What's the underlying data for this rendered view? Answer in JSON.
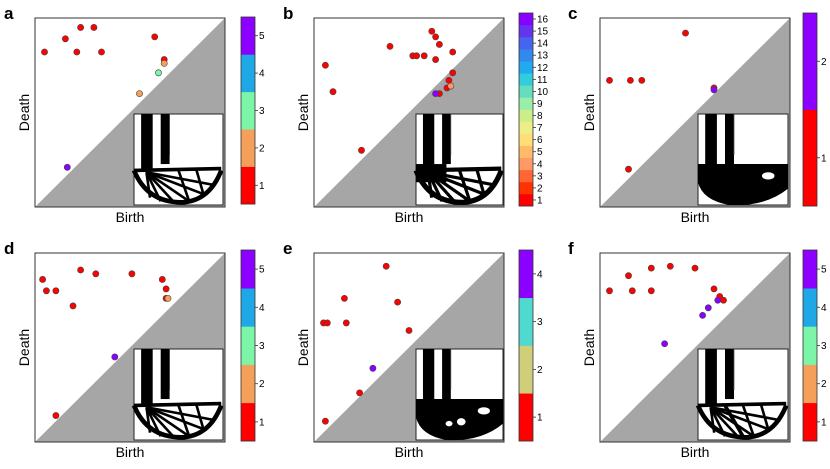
{
  "colors": {
    "triangle": "#a6a6a6",
    "frame": "#333333",
    "point_edge": "#444444"
  },
  "chart_data": [
    {
      "type": "scatter",
      "letter": "a",
      "xlabel": "Birth",
      "ylabel": "Death",
      "xlim": [
        0,
        1
      ],
      "ylim": [
        0,
        1
      ],
      "diagonal_shaded": true,
      "colorbar": {
        "max": 5.5,
        "ticks": [
          1,
          2,
          3,
          4,
          5
        ],
        "colors": [
          "#ff0000",
          "#f5a05a",
          "#7cf5a8",
          "#1ea9e6",
          "#8c00ff"
        ]
      },
      "points": [
        {
          "x": 0.05,
          "y": 0.82,
          "c": 1
        },
        {
          "x": 0.16,
          "y": 0.89,
          "c": 1
        },
        {
          "x": 0.24,
          "y": 0.95,
          "c": 1
        },
        {
          "x": 0.31,
          "y": 0.95,
          "c": 1
        },
        {
          "x": 0.22,
          "y": 0.82,
          "c": 1
        },
        {
          "x": 0.35,
          "y": 0.82,
          "c": 1
        },
        {
          "x": 0.63,
          "y": 0.9,
          "c": 1
        },
        {
          "x": 0.68,
          "y": 0.78,
          "c": 1
        },
        {
          "x": 0.68,
          "y": 0.76,
          "c": 2
        },
        {
          "x": 0.65,
          "y": 0.71,
          "c": 3
        },
        {
          "x": 0.55,
          "y": 0.6,
          "c": 2
        },
        {
          "x": 0.17,
          "y": 0.21,
          "c": 5
        }
      ]
    },
    {
      "type": "scatter",
      "letter": "b",
      "xlabel": "Birth",
      "ylabel": "Death",
      "xlim": [
        0,
        1
      ],
      "ylim": [
        0,
        1
      ],
      "diagonal_shaded": true,
      "colorbar": {
        "max": 16.5,
        "ticks": [
          1,
          2,
          3,
          4,
          5,
          6,
          7,
          8,
          9,
          10,
          11,
          12,
          13,
          14,
          15,
          16
        ],
        "colors": [
          "#ff0000",
          "#ff3300",
          "#ff6633",
          "#ff9966",
          "#ffbb66",
          "#ffdd77",
          "#eeee88",
          "#ccee88",
          "#99eeaa",
          "#66ddbb",
          "#33ccdd",
          "#22aaee",
          "#3388ee",
          "#4466ee",
          "#6633ee",
          "#8800ff"
        ]
      },
      "points": [
        {
          "x": 0.06,
          "y": 0.75,
          "c": 1
        },
        {
          "x": 0.1,
          "y": 0.61,
          "c": 1
        },
        {
          "x": 0.4,
          "y": 0.85,
          "c": 1
        },
        {
          "x": 0.52,
          "y": 0.8,
          "c": 1
        },
        {
          "x": 0.54,
          "y": 0.8,
          "c": 1
        },
        {
          "x": 0.58,
          "y": 0.8,
          "c": 1
        },
        {
          "x": 0.62,
          "y": 0.93,
          "c": 1
        },
        {
          "x": 0.64,
          "y": 0.9,
          "c": 1
        },
        {
          "x": 0.66,
          "y": 0.86,
          "c": 1
        },
        {
          "x": 0.64,
          "y": 0.78,
          "c": 1
        },
        {
          "x": 0.73,
          "y": 0.82,
          "c": 1
        },
        {
          "x": 0.73,
          "y": 0.71,
          "c": 1
        },
        {
          "x": 0.71,
          "y": 0.67,
          "c": 1
        },
        {
          "x": 0.7,
          "y": 0.63,
          "c": 1
        },
        {
          "x": 0.72,
          "y": 0.64,
          "c": 4
        },
        {
          "x": 0.66,
          "y": 0.6,
          "c": 1
        },
        {
          "x": 0.64,
          "y": 0.6,
          "c": 16
        },
        {
          "x": 0.25,
          "y": 0.3,
          "c": 1
        }
      ]
    },
    {
      "type": "scatter",
      "letter": "c",
      "xlabel": "Birth",
      "ylabel": "Death",
      "xlim": [
        0,
        1
      ],
      "ylim": [
        0,
        1
      ],
      "diagonal_shaded": true,
      "colorbar": {
        "max": 2.5,
        "ticks": [
          1,
          2
        ],
        "colors": [
          "#ff0000",
          "#8c00ff"
        ]
      },
      "points": [
        {
          "x": 0.45,
          "y": 0.92,
          "c": 1
        },
        {
          "x": 0.05,
          "y": 0.67,
          "c": 1
        },
        {
          "x": 0.16,
          "y": 0.67,
          "c": 1
        },
        {
          "x": 0.22,
          "y": 0.67,
          "c": 1
        },
        {
          "x": 0.6,
          "y": 0.63,
          "c": 1
        },
        {
          "x": 0.6,
          "y": 0.62,
          "c": 2
        },
        {
          "x": 0.15,
          "y": 0.2,
          "c": 1
        }
      ]
    },
    {
      "type": "scatter",
      "letter": "d",
      "xlabel": "Birth",
      "ylabel": "Death",
      "xlim": [
        0,
        1
      ],
      "ylim": [
        0,
        1
      ],
      "diagonal_shaded": true,
      "colorbar": {
        "max": 5.5,
        "ticks": [
          1,
          2,
          3,
          4,
          5
        ],
        "colors": [
          "#ff0000",
          "#f5a05a",
          "#7cf5a8",
          "#1ea9e6",
          "#8c00ff"
        ]
      },
      "points": [
        {
          "x": 0.04,
          "y": 0.86,
          "c": 1
        },
        {
          "x": 0.06,
          "y": 0.8,
          "c": 1
        },
        {
          "x": 0.11,
          "y": 0.8,
          "c": 1
        },
        {
          "x": 0.24,
          "y": 0.91,
          "c": 1
        },
        {
          "x": 0.32,
          "y": 0.89,
          "c": 1
        },
        {
          "x": 0.2,
          "y": 0.72,
          "c": 1
        },
        {
          "x": 0.51,
          "y": 0.89,
          "c": 1
        },
        {
          "x": 0.67,
          "y": 0.86,
          "c": 1
        },
        {
          "x": 0.69,
          "y": 0.81,
          "c": 1
        },
        {
          "x": 0.69,
          "y": 0.76,
          "c": 1
        },
        {
          "x": 0.7,
          "y": 0.76,
          "c": 2
        },
        {
          "x": 0.42,
          "y": 0.45,
          "c": 5
        },
        {
          "x": 0.11,
          "y": 0.14,
          "c": 1
        }
      ]
    },
    {
      "type": "scatter",
      "letter": "e",
      "xlabel": "Birth",
      "ylabel": "Death",
      "xlim": [
        0,
        1
      ],
      "ylim": [
        0,
        1
      ],
      "diagonal_shaded": true,
      "colorbar": {
        "max": 4.5,
        "ticks": [
          1,
          2,
          3,
          4
        ],
        "colors": [
          "#ff0000",
          "#cfcf7a",
          "#4fd9d0",
          "#8c00ff"
        ]
      },
      "points": [
        {
          "x": 0.38,
          "y": 0.93,
          "c": 1
        },
        {
          "x": 0.16,
          "y": 0.76,
          "c": 1
        },
        {
          "x": 0.05,
          "y": 0.63,
          "c": 1
        },
        {
          "x": 0.07,
          "y": 0.63,
          "c": 1
        },
        {
          "x": 0.17,
          "y": 0.63,
          "c": 1
        },
        {
          "x": 0.44,
          "y": 0.74,
          "c": 1
        },
        {
          "x": 0.5,
          "y": 0.59,
          "c": 1
        },
        {
          "x": 0.31,
          "y": 0.39,
          "c": 4
        },
        {
          "x": 0.24,
          "y": 0.26,
          "c": 1
        },
        {
          "x": 0.06,
          "y": 0.11,
          "c": 1
        }
      ]
    },
    {
      "type": "scatter",
      "letter": "f",
      "xlabel": "Birth",
      "ylabel": "Death",
      "xlim": [
        0,
        1
      ],
      "ylim": [
        0,
        1
      ],
      "diagonal_shaded": true,
      "colorbar": {
        "max": 5.5,
        "ticks": [
          1,
          2,
          3,
          4,
          5
        ],
        "colors": [
          "#ff0000",
          "#f5a05a",
          "#7cf5a8",
          "#1ea9e6",
          "#8c00ff"
        ]
      },
      "points": [
        {
          "x": 0.05,
          "y": 0.8,
          "c": 1
        },
        {
          "x": 0.17,
          "y": 0.8,
          "c": 1
        },
        {
          "x": 0.27,
          "y": 0.8,
          "c": 1
        },
        {
          "x": 0.15,
          "y": 0.88,
          "c": 1
        },
        {
          "x": 0.27,
          "y": 0.92,
          "c": 1
        },
        {
          "x": 0.37,
          "y": 0.93,
          "c": 1
        },
        {
          "x": 0.5,
          "y": 0.92,
          "c": 1
        },
        {
          "x": 0.6,
          "y": 0.81,
          "c": 1
        },
        {
          "x": 0.63,
          "y": 0.77,
          "c": 1
        },
        {
          "x": 0.65,
          "y": 0.75,
          "c": 1
        },
        {
          "x": 0.62,
          "y": 0.75,
          "c": 5
        },
        {
          "x": 0.57,
          "y": 0.71,
          "c": 5
        },
        {
          "x": 0.54,
          "y": 0.67,
          "c": 5
        },
        {
          "x": 0.34,
          "y": 0.52,
          "c": 5
        }
      ]
    }
  ]
}
